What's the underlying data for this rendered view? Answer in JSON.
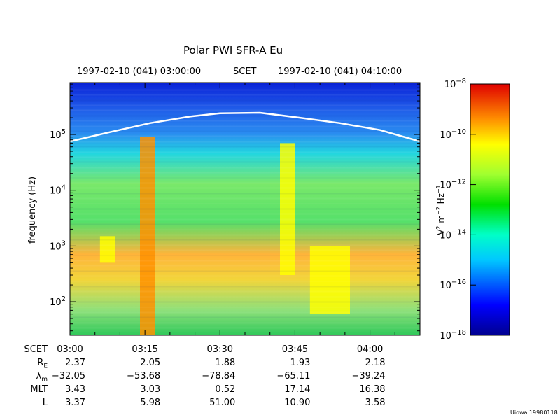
{
  "chart_data": {
    "type": "heatmap",
    "title": "Polar PWI SFR-A Eu",
    "header": {
      "start": "1997-02-10 (041) 03:00:00",
      "scet": "SCET",
      "end": "1997-02-10 (041) 04:10:00"
    },
    "ylabel": "frequency (Hz)",
    "y_scale": "log",
    "ylim": [
      25,
      850000
    ],
    "y_ticks": [
      {
        "value": 100,
        "mantissa": "10",
        "exp": "2"
      },
      {
        "value": 1000,
        "mantissa": "10",
        "exp": "3"
      },
      {
        "value": 10000,
        "mantissa": "10",
        "exp": "4"
      },
      {
        "value": 100000,
        "mantissa": "10",
        "exp": "5"
      }
    ],
    "x_range_minutes": [
      0,
      70
    ],
    "x_ticks": [
      {
        "t": 0,
        "label": "03:00"
      },
      {
        "t": 15,
        "label": "03:15"
      },
      {
        "t": 30,
        "label": "03:30"
      },
      {
        "t": 45,
        "label": "03:45"
      },
      {
        "t": 60,
        "label": "04:00"
      }
    ],
    "colorbar": {
      "label_parts": [
        "V",
        "2",
        " m",
        "−2",
        " Hz",
        "−1"
      ],
      "scale": "log",
      "range": [
        1e-18,
        1e-08
      ],
      "ticks": [
        {
          "value": 1e-08,
          "mantissa": "10",
          "exp": "−8"
        },
        {
          "value": 1e-10,
          "mantissa": "10",
          "exp": "−10"
        },
        {
          "value": 1e-12,
          "mantissa": "10",
          "exp": "−12"
        },
        {
          "value": 1e-14,
          "mantissa": "10",
          "exp": "−14"
        },
        {
          "value": 1e-16,
          "mantissa": "10",
          "exp": "−16"
        },
        {
          "value": 1e-18,
          "mantissa": "10",
          "exp": "−18"
        }
      ]
    },
    "overlay_line": {
      "color": "#ffffff",
      "points": [
        [
          0,
          75000
        ],
        [
          8,
          110000
        ],
        [
          16,
          160000
        ],
        [
          24,
          210000
        ],
        [
          30,
          240000
        ],
        [
          38,
          245000
        ],
        [
          46,
          200000
        ],
        [
          54,
          160000
        ],
        [
          62,
          120000
        ],
        [
          70,
          75000
        ]
      ]
    },
    "features": [
      {
        "name": "emission band",
        "t_start": 14,
        "t_end": 17,
        "f_low": 25,
        "f_high": 90000,
        "level": 1e-10
      },
      {
        "name": "emission band",
        "t_start": 42,
        "t_end": 45,
        "f_low": 300,
        "f_high": 70000,
        "level": 1e-11
      },
      {
        "name": "emission patch",
        "t_start": 48,
        "t_end": 56,
        "f_low": 60,
        "f_high": 1000,
        "level": 3e-11
      },
      {
        "name": "emission patch",
        "t_start": 6,
        "t_end": 9,
        "f_low": 500,
        "f_high": 1500,
        "level": 5e-12
      }
    ]
  },
  "ephemeris": {
    "rows": [
      {
        "label_main": "SCET",
        "label_sub": "",
        "values": []
      },
      {
        "label_main": "R",
        "label_sub": "E",
        "values": [
          "2.37",
          "2.05",
          "1.88",
          "1.93",
          "2.18"
        ]
      },
      {
        "label_main": "λ",
        "label_sub": "m",
        "values": [
          "−32.05",
          "−53.68",
          "−78.84",
          "−65.11",
          "−39.24"
        ]
      },
      {
        "label_main": "MLT",
        "label_sub": "",
        "values": [
          "3.43",
          "3.03",
          "0.52",
          "17.14",
          "16.38"
        ]
      },
      {
        "label_main": "L",
        "label_sub": "",
        "values": [
          "3.37",
          "5.98",
          "51.00",
          "10.90",
          "3.58"
        ]
      }
    ]
  },
  "footer": {
    "credit": "Uiowa 19980118"
  }
}
